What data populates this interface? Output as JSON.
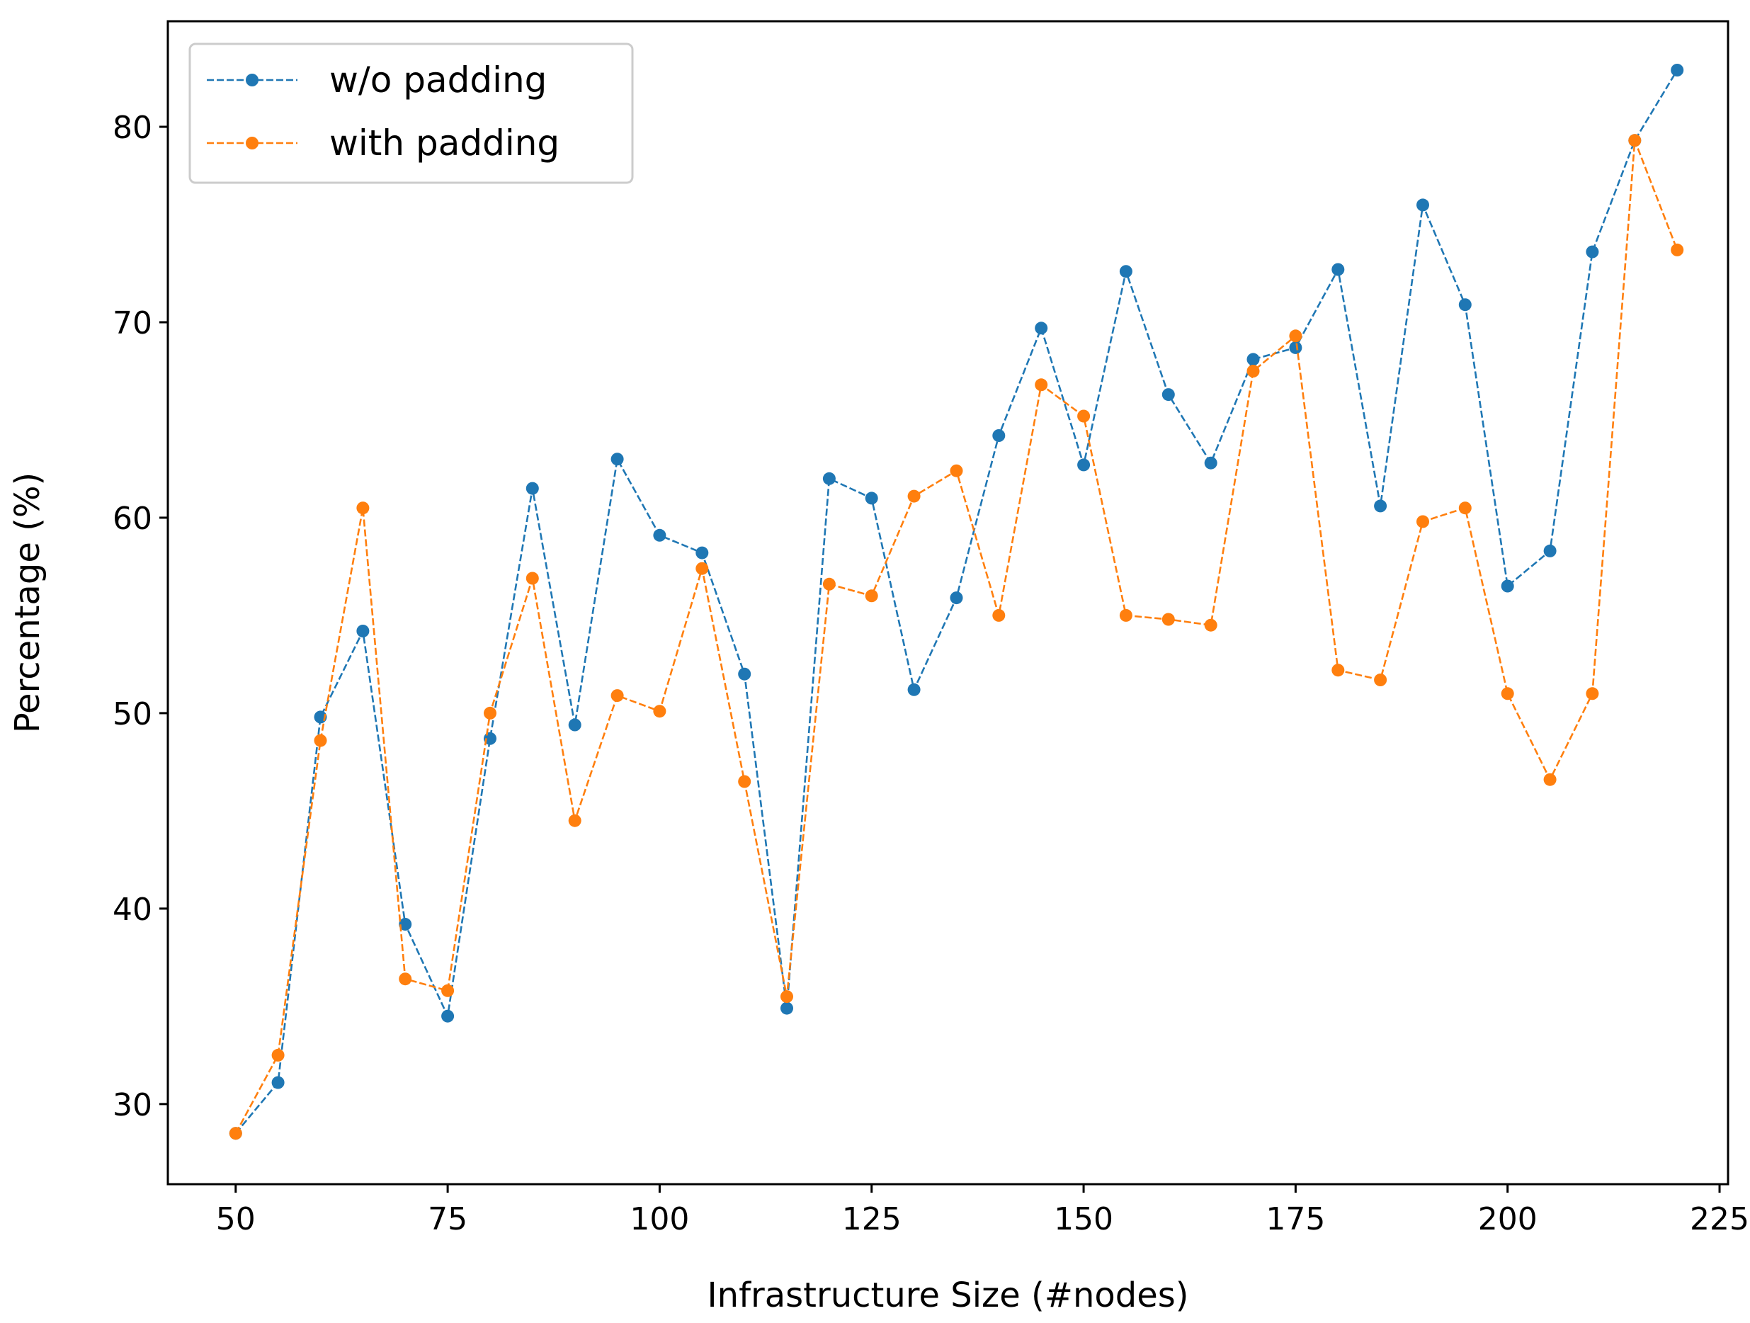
{
  "chart_data": {
    "type": "line",
    "title": "",
    "xlabel": "Infrastructure Size (#nodes)",
    "ylabel": "Percentage (%)",
    "xlim": [
      42,
      226
    ],
    "ylim": [
      25.9,
      85.4
    ],
    "xticks": [
      50,
      75,
      100,
      125,
      150,
      175,
      200,
      225
    ],
    "yticks": [
      30,
      40,
      50,
      60,
      70,
      80
    ],
    "grid": false,
    "legend": "top-left",
    "x": [
      50,
      55,
      60,
      65,
      70,
      75,
      80,
      85,
      90,
      95,
      100,
      105,
      110,
      115,
      120,
      125,
      130,
      135,
      140,
      145,
      150,
      155,
      160,
      165,
      170,
      175,
      180,
      185,
      190,
      195,
      200,
      205,
      210,
      215,
      220
    ],
    "series": [
      {
        "name": "w/o padding",
        "color": "#1f77b4",
        "values": [
          28.5,
          31.1,
          49.8,
          54.2,
          39.2,
          34.5,
          48.7,
          61.5,
          49.4,
          63.0,
          59.1,
          58.2,
          52.0,
          34.9,
          62.0,
          61.0,
          51.2,
          55.9,
          64.2,
          69.7,
          62.7,
          72.6,
          66.3,
          62.8,
          68.1,
          68.7,
          72.7,
          60.6,
          76.0,
          70.9,
          56.5,
          58.3,
          73.6,
          79.3,
          82.9
        ]
      },
      {
        "name": "with padding",
        "color": "#ff7f0e",
        "values": [
          28.5,
          32.5,
          48.6,
          60.5,
          36.4,
          35.8,
          50.0,
          56.9,
          44.5,
          50.9,
          50.1,
          57.4,
          46.5,
          35.5,
          56.6,
          56.0,
          61.1,
          62.4,
          55.0,
          66.8,
          65.2,
          55.0,
          54.8,
          54.5,
          67.5,
          69.3,
          52.2,
          51.7,
          59.8,
          60.5,
          51.0,
          46.6,
          51.0,
          79.3,
          73.7
        ]
      }
    ]
  }
}
